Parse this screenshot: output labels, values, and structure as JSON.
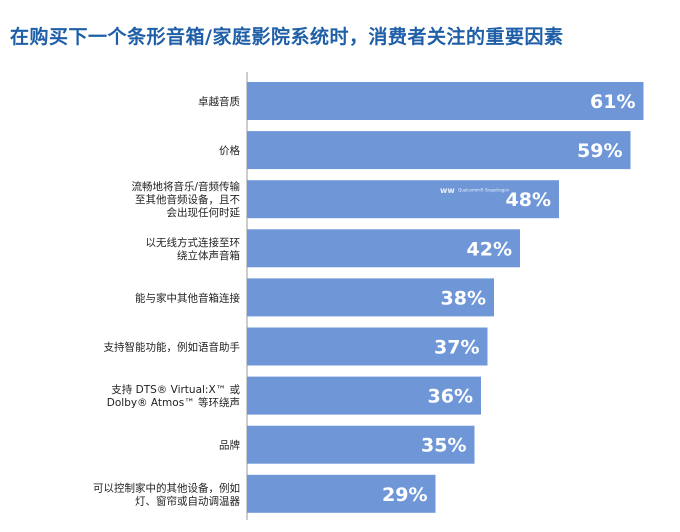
{
  "chart_data": {
    "type": "bar",
    "orientation": "horizontal",
    "title": "在购买下一个条形音箱/家庭影院系统时，消费者关注的重要因素",
    "categories": [
      [
        "卓越音质"
      ],
      [
        "价格"
      ],
      [
        "流畅地将音乐/音频传输",
        "至其他音频设备，且不",
        "会出现任何时延"
      ],
      [
        "以无线方式连接至环",
        "绕立体声音箱"
      ],
      [
        "能与家中其他音箱连接"
      ],
      [
        "支持智能功能，例如语音助手"
      ],
      [
        "支持 DTS® Virtual:X™ 或",
        "Dolby® Atmos™ 等环绕声"
      ],
      [
        "品牌"
      ],
      [
        "可以控制家中的其他设备，例如",
        "灯、窗帘或自动调温器"
      ]
    ],
    "values": [
      61,
      59,
      48,
      42,
      38,
      37,
      36,
      35,
      29
    ],
    "value_labels": [
      "61%",
      "59%",
      "48%",
      "42%",
      "38%",
      "37%",
      "36%",
      "35%",
      "29%"
    ],
    "bar_color": "#6f97d8",
    "grid": false,
    "legend": "none"
  },
  "watermark": {
    "text": "Qualcomm® Snapdragon"
  }
}
